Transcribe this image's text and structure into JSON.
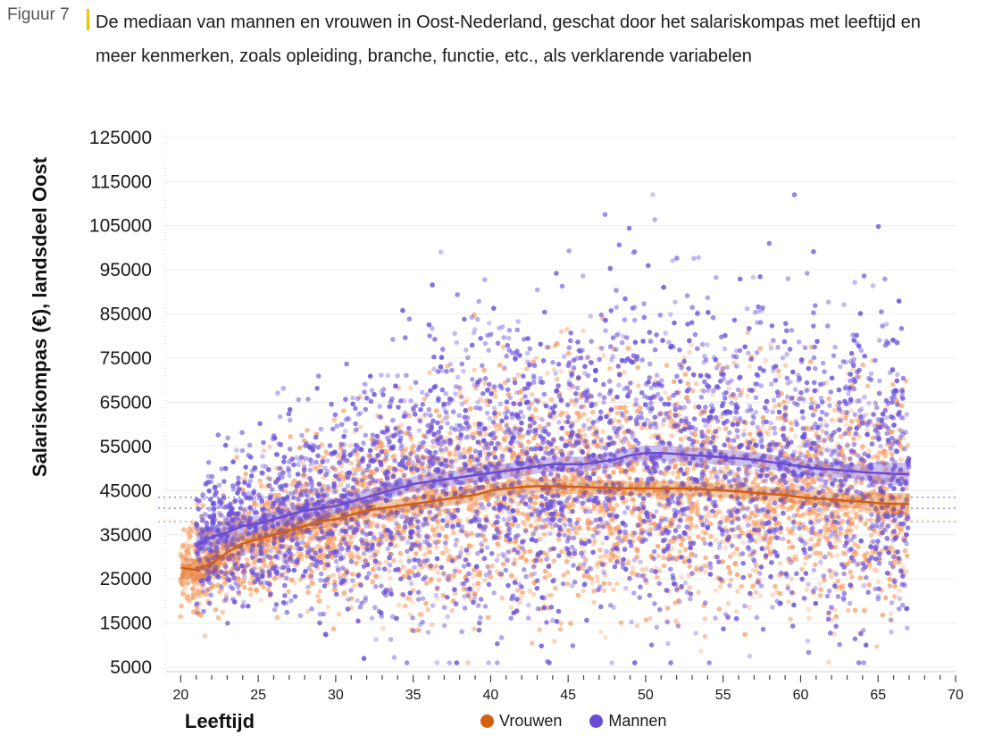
{
  "figure": {
    "label": "Figuur 7",
    "title": "De mediaan van mannen en vrouwen in Oost-Nederland, geschat door het salariskompas met leeftijd en meer kenmerken, zoals opleiding, branche, functie, etc., als verklarende variabelen"
  },
  "colors": {
    "accent_bar": "#f2c200",
    "vrouwen": "#d35f0f",
    "vrouwen_points": "#f7a26a",
    "mannen": "#6a4bd6",
    "mannen_points": "#6d55d8"
  },
  "chart_data": {
    "type": "scatter",
    "title": "De mediaan van mannen en vrouwen in Oost-Nederland, geschat door het salariskompas met leeftijd en meer kenmerken, zoals opleiding, branche, functie, etc., als verklarende variabelen",
    "xlabel": "Leeftijd",
    "ylabel": "Salariskompas (€), landsdeel Oost",
    "xlim": [
      19,
      70
    ],
    "ylim": [
      4000,
      127000
    ],
    "x_ticks": [
      "20",
      "25",
      "30",
      "35",
      "40",
      "45",
      "50",
      "55",
      "60",
      "65",
      "70"
    ],
    "y_ticks": [
      "125000",
      "115000",
      "105000",
      "95000",
      "85000",
      "75000",
      "65000",
      "55000",
      "45000",
      "35000",
      "25000",
      "15000",
      "5000"
    ],
    "grid": true,
    "legend_position": "bottom",
    "legend": [
      "Vrouwen",
      "Mannen"
    ],
    "reference_lines": [
      {
        "series": "Mannen",
        "y": 43500
      },
      {
        "series": "Mannen",
        "y": 41000
      },
      {
        "series": "Vrouwen",
        "y": 38000
      }
    ],
    "series": [
      {
        "name": "Vrouwen",
        "x": [
          20,
          21,
          22,
          23,
          24,
          25,
          26,
          27,
          28,
          29,
          30,
          31,
          32,
          33,
          34,
          35,
          36,
          37,
          38,
          39,
          40,
          41,
          42,
          43,
          44,
          45,
          46,
          47,
          48,
          49,
          50,
          51,
          52,
          53,
          54,
          55,
          56,
          57,
          58,
          59,
          60,
          61,
          62,
          63,
          64,
          65,
          66,
          67
        ],
        "median": [
          27500,
          27000,
          28500,
          31000,
          33000,
          34000,
          35000,
          36000,
          37000,
          38000,
          38500,
          39500,
          40500,
          41000,
          41500,
          42000,
          42500,
          43000,
          43500,
          44000,
          45000,
          45500,
          45800,
          46000,
          46000,
          45900,
          45800,
          45700,
          45600,
          45500,
          45500,
          45500,
          45500,
          45400,
          45200,
          45000,
          44800,
          44500,
          44200,
          44000,
          43500,
          43200,
          43000,
          42700,
          42500,
          42200,
          42000,
          42000
        ]
      },
      {
        "name": "Mannen",
        "x": [
          21,
          22,
          23,
          24,
          25,
          26,
          27,
          28,
          29,
          30,
          31,
          32,
          33,
          34,
          35,
          36,
          37,
          38,
          39,
          40,
          41,
          42,
          43,
          44,
          45,
          46,
          47,
          48,
          49,
          50,
          51,
          52,
          53,
          54,
          55,
          56,
          57,
          58,
          59,
          60,
          61,
          62,
          63,
          64,
          65,
          66,
          67
        ],
        "median": [
          32500,
          34500,
          35500,
          37000,
          37500,
          38500,
          39500,
          40500,
          41000,
          41500,
          42500,
          43500,
          44500,
          45500,
          46500,
          47000,
          47500,
          48000,
          48500,
          49000,
          49500,
          50000,
          50500,
          51000,
          51000,
          51000,
          51500,
          52000,
          53000,
          53500,
          53500,
          53300,
          53000,
          52800,
          52500,
          52300,
          52000,
          51500,
          51000,
          50500,
          50000,
          49800,
          49500,
          49200,
          49000,
          48800,
          48700
        ]
      }
    ]
  }
}
